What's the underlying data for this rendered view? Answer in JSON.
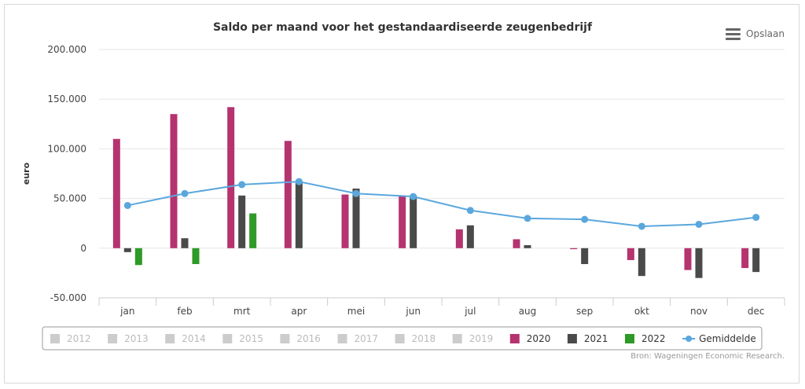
{
  "export": {
    "label": "Opslaan",
    "icon": "menu-icon"
  },
  "credits": "Bron: Wageningen Economic Research.",
  "colors": {
    "2020": "#b5336f",
    "2021": "#4a4a4a",
    "2022": "#2e9a27",
    "avg": "#5aa7dd",
    "inactive": "#cccccc",
    "grid": "#e6e6e6"
  },
  "chart_data": {
    "type": "bar",
    "title": "Saldo per maand voor het gestandaardiseerde zeugenbedrijf",
    "xlabel": "",
    "ylabel": "euro",
    "ylim": [
      -50000,
      200000
    ],
    "yticks": [
      -50000,
      0,
      50000,
      100000,
      150000,
      200000
    ],
    "ytick_labels": [
      "-50.000",
      "0",
      "50.000",
      "100.000",
      "150.000",
      "200.000"
    ],
    "categories": [
      "jan",
      "feb",
      "mrt",
      "apr",
      "mei",
      "jun",
      "jul",
      "aug",
      "sep",
      "okt",
      "nov",
      "dec"
    ],
    "series": [
      {
        "name": "2020",
        "type": "bar",
        "values": [
          110000,
          135000,
          142000,
          108000,
          54000,
          53000,
          19000,
          9000,
          -1000,
          -12000,
          -22000,
          -20000
        ]
      },
      {
        "name": "2021",
        "type": "bar",
        "values": [
          -4000,
          10000,
          53000,
          67000,
          60000,
          53000,
          23000,
          3000,
          -16000,
          -28000,
          -30000,
          -24000
        ]
      },
      {
        "name": "2022",
        "type": "bar",
        "values": [
          -17000,
          -16000,
          35000,
          null,
          null,
          null,
          null,
          null,
          null,
          null,
          null,
          null
        ]
      },
      {
        "name": "Gemiddelde",
        "type": "line",
        "values": [
          43000,
          55000,
          64000,
          67000,
          55000,
          52000,
          38000,
          30000,
          29000,
          22000,
          24000,
          31000
        ]
      }
    ],
    "legend": {
      "position": "bottom",
      "items": [
        {
          "name": "2012",
          "active": false
        },
        {
          "name": "2013",
          "active": false
        },
        {
          "name": "2014",
          "active": false
        },
        {
          "name": "2015",
          "active": false
        },
        {
          "name": "2016",
          "active": false
        },
        {
          "name": "2017",
          "active": false
        },
        {
          "name": "2018",
          "active": false
        },
        {
          "name": "2019",
          "active": false
        },
        {
          "name": "2020",
          "active": true
        },
        {
          "name": "2021",
          "active": true
        },
        {
          "name": "2022",
          "active": true
        },
        {
          "name": "Gemiddelde",
          "active": true,
          "symbol": "line"
        }
      ]
    }
  }
}
